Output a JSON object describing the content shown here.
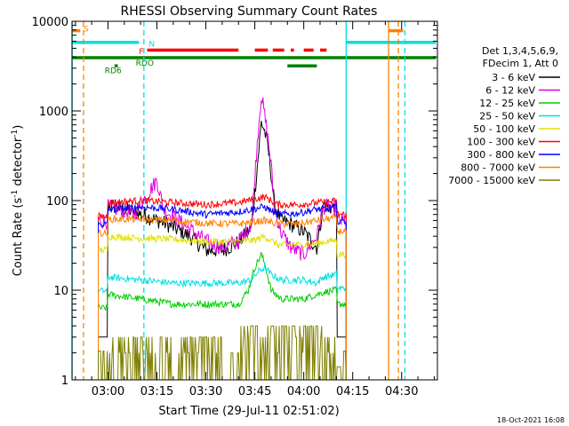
{
  "chart_data": {
    "type": "line",
    "title": "RHESSI Observing Summary Count Rates",
    "xlabel": "Start Time (29-Jul-11 02:51:02)",
    "ylabel": "Count Rate (s",
    "ylabel_sup": "-1",
    "ylabel_tail": " detector",
    "ylabel_sup2": "-1",
    "ylabel_end": ")",
    "yscale": "log",
    "xlim": [
      -11.03,
      100.97
    ],
    "ylim": [
      1,
      10000
    ],
    "x_ticks": [
      {
        "t": 0,
        "label": "03:00"
      },
      {
        "t": 15,
        "label": "03:15"
      },
      {
        "t": 30,
        "label": "03:30"
      },
      {
        "t": 45,
        "label": "03:45"
      },
      {
        "t": 60,
        "label": "04:00"
      },
      {
        "t": 75,
        "label": "04:15"
      },
      {
        "t": 90,
        "label": "04:30"
      }
    ],
    "y_ticks": [
      {
        "v": 1,
        "label": "1"
      },
      {
        "v": 10,
        "label": "10"
      },
      {
        "v": 100,
        "label": "100"
      },
      {
        "v": 1000,
        "label": "1000"
      },
      {
        "v": 10000,
        "label": "10000"
      }
    ],
    "grid": false,
    "legend_header": [
      "Det 1,3,4,5,6,9,",
      "FDecim 1, Att 0"
    ],
    "legend_placement": "right",
    "series": [
      {
        "name": "3 - 6 keV",
        "color": "#000000",
        "base": 75,
        "curve": [
          [
            0,
            90
          ],
          [
            8,
            75
          ],
          [
            18,
            55
          ],
          [
            25,
            40
          ],
          [
            30,
            28
          ],
          [
            35,
            28
          ],
          [
            40,
            34
          ],
          [
            44,
            50
          ],
          [
            46,
            300
          ],
          [
            47,
            750
          ],
          [
            48,
            600
          ],
          [
            49,
            400
          ],
          [
            50,
            200
          ],
          [
            51,
            90
          ],
          [
            53,
            60
          ],
          [
            56,
            55
          ],
          [
            60,
            45
          ],
          [
            64,
            30
          ],
          [
            66,
            90
          ],
          [
            70,
            80
          ]
        ]
      },
      {
        "name": "6 - 12 keV",
        "color": "#e000e0",
        "base": 75,
        "curve": [
          [
            0,
            85
          ],
          [
            8,
            70
          ],
          [
            15,
            170
          ],
          [
            17,
            80
          ],
          [
            23,
            55
          ],
          [
            30,
            35
          ],
          [
            35,
            30
          ],
          [
            40,
            35
          ],
          [
            44,
            55
          ],
          [
            46,
            600
          ],
          [
            47,
            1500
          ],
          [
            48,
            900
          ],
          [
            49,
            500
          ],
          [
            50,
            250
          ],
          [
            51,
            80
          ],
          [
            53,
            45
          ],
          [
            56,
            30
          ],
          [
            60,
            25
          ],
          [
            64,
            40
          ],
          [
            66,
            85
          ],
          [
            70,
            85
          ]
        ]
      },
      {
        "name": "12 - 25 keV",
        "color": "#00d000",
        "base": 9,
        "curve": [
          [
            0,
            9
          ],
          [
            10,
            8
          ],
          [
            20,
            7
          ],
          [
            30,
            7
          ],
          [
            40,
            7
          ],
          [
            43,
            10
          ],
          [
            45,
            18
          ],
          [
            47,
            25
          ],
          [
            48,
            20
          ],
          [
            50,
            10
          ],
          [
            53,
            8
          ],
          [
            60,
            8
          ],
          [
            64,
            9
          ],
          [
            66,
            9.5
          ],
          [
            70,
            10
          ]
        ]
      },
      {
        "name": "25 - 50 keV",
        "color": "#00e0e0",
        "base": 14,
        "curve": [
          [
            0,
            14
          ],
          [
            10,
            13
          ],
          [
            20,
            12
          ],
          [
            30,
            12
          ],
          [
            40,
            12
          ],
          [
            44,
            13
          ],
          [
            46,
            16
          ],
          [
            48,
            18
          ],
          [
            50,
            15
          ],
          [
            53,
            13
          ],
          [
            60,
            13
          ],
          [
            64,
            12
          ],
          [
            66,
            14
          ],
          [
            70,
            15
          ]
        ]
      },
      {
        "name": "50 - 100 keV",
        "color": "#e0e000",
        "base": 40,
        "curve": [
          [
            0,
            40
          ],
          [
            10,
            38
          ],
          [
            20,
            37
          ],
          [
            30,
            35
          ],
          [
            40,
            35
          ],
          [
            45,
            36
          ],
          [
            48,
            40
          ],
          [
            52,
            32
          ],
          [
            60,
            32
          ],
          [
            64,
            33
          ],
          [
            67,
            35
          ],
          [
            70,
            36
          ]
        ]
      },
      {
        "name": "100 - 300 keV",
        "color": "#ff0000",
        "base": 98,
        "curve": [
          [
            0,
            95
          ],
          [
            10,
            100
          ],
          [
            20,
            95
          ],
          [
            30,
            90
          ],
          [
            40,
            95
          ],
          [
            48,
            110
          ],
          [
            52,
            90
          ],
          [
            58,
            90
          ],
          [
            64,
            95
          ],
          [
            67,
            95
          ],
          [
            70,
            100
          ]
        ]
      },
      {
        "name": "300 - 800 keV",
        "color": "#0000ff",
        "base": 78,
        "curve": [
          [
            0,
            78
          ],
          [
            10,
            85
          ],
          [
            20,
            80
          ],
          [
            30,
            70
          ],
          [
            40,
            75
          ],
          [
            48,
            85
          ],
          [
            52,
            70
          ],
          [
            58,
            72
          ],
          [
            64,
            80
          ],
          [
            67,
            80
          ],
          [
            70,
            85
          ]
        ]
      },
      {
        "name": "800 - 7000 keV",
        "color": "#ff8000",
        "base": 62,
        "curve": [
          [
            0,
            62
          ],
          [
            10,
            62
          ],
          [
            20,
            60
          ],
          [
            30,
            56
          ],
          [
            40,
            55
          ],
          [
            48,
            60
          ],
          [
            52,
            55
          ],
          [
            58,
            55
          ],
          [
            64,
            60
          ],
          [
            67,
            62
          ],
          [
            70,
            65
          ]
        ]
      },
      {
        "name": "7000 - 15000 keV",
        "color": "#808000",
        "base": 1.8,
        "curve": [
          [
            0,
            1.8
          ],
          [
            10,
            1.8
          ],
          [
            20,
            1.6
          ],
          [
            30,
            1.6
          ],
          [
            40,
            1.8
          ],
          [
            45,
            2.2
          ],
          [
            50,
            2.6
          ],
          [
            56,
            2.8
          ],
          [
            62,
            2.8
          ],
          [
            66,
            2.2
          ],
          [
            70,
            2
          ]
        ]
      }
    ],
    "data_window": [
      -3,
      73
    ],
    "vertical_lines": [
      {
        "t": -11.0,
        "color": "#00e0e0",
        "style": "solid"
      },
      {
        "t": -7.5,
        "color": "#ff8000",
        "style": "dashed"
      },
      {
        "t": 11.0,
        "color": "#00e0e0",
        "style": "dashed"
      },
      {
        "t": 73.0,
        "color": "#00e0e0",
        "style": "solid"
      },
      {
        "t": 86.0,
        "color": "#ff8000",
        "style": "solid"
      },
      {
        "t": 89.0,
        "color": "#ff8000",
        "style": "dashed"
      },
      {
        "t": 91.0,
        "color": "#00e0e0",
        "style": "dashed"
      }
    ],
    "annotations": {
      "S": {
        "label": "S",
        "color": "#ff8000"
      },
      "N": {
        "label": "N",
        "color": "#00e0e0"
      },
      "F": {
        "label": "F",
        "color": "#ff0000"
      },
      "RDO": {
        "label": "RDO",
        "color": "#008000"
      },
      "RD6": {
        "label": "RD6",
        "color": "#008000"
      }
    },
    "flag_bars": [
      {
        "name": "S",
        "color": "#ff8000",
        "y": 7900,
        "segments": [
          [
            -11,
            -8.5
          ],
          [
            86,
            90.5
          ]
        ]
      },
      {
        "name": "N",
        "color": "#00e0e0",
        "y": 5850,
        "segments": [
          [
            -11,
            9.5
          ],
          [
            73,
            100.5
          ]
        ]
      },
      {
        "name": "F",
        "color": "#ff0000",
        "y": 4800,
        "segments": [
          [
            12,
            40
          ],
          [
            45,
            49
          ],
          [
            50.5,
            54
          ],
          [
            56,
            57
          ],
          [
            60,
            63
          ],
          [
            65,
            67
          ]
        ]
      },
      {
        "name": "RDO",
        "color": "#008000",
        "y": 3950,
        "segments": [
          [
            -11,
            100.5
          ]
        ]
      },
      {
        "name": "RD6",
        "color": "#008000",
        "y": 3200,
        "segments": [
          [
            2,
            3
          ],
          [
            55,
            64
          ]
        ]
      }
    ]
  },
  "footer": {
    "timestamp": "18-Oct-2021 16:08"
  }
}
